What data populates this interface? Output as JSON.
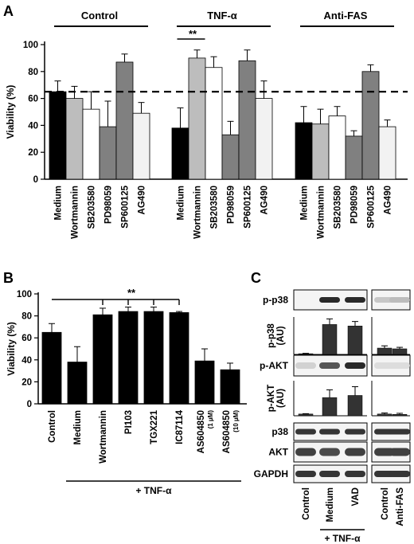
{
  "panel_labels": {
    "a": "A",
    "b": "B",
    "c": "C"
  },
  "chart_data": [
    {
      "type": "bar",
      "panel": "A",
      "ylabel": "Viability (%)",
      "ylim": [
        0,
        100
      ],
      "yticks": [
        0,
        20,
        40,
        60,
        80,
        100
      ],
      "reference_line": 65,
      "groups": [
        {
          "name": "Control",
          "categories": [
            "Medium",
            "Wortmannin",
            "SB203580",
            "PD98059",
            "SP600125",
            "AG490"
          ],
          "values": [
            65,
            60,
            52,
            39,
            87,
            49
          ],
          "errors": [
            8,
            9,
            13,
            19,
            6,
            8
          ],
          "colors": [
            "#000000",
            "#bdbdbd",
            "#ffffff",
            "#808080",
            "#808080",
            "#f2f2f2"
          ]
        },
        {
          "name": "TNF-α",
          "categories": [
            "Medium",
            "Wortmannin",
            "SB203580",
            "PD98059",
            "SP600125",
            "AG490"
          ],
          "values": [
            38,
            90,
            83,
            33,
            88,
            60
          ],
          "errors": [
            15,
            6,
            8,
            10,
            8,
            13
          ],
          "colors": [
            "#000000",
            "#bdbdbd",
            "#ffffff",
            "#808080",
            "#808080",
            "#f2f2f2"
          ],
          "significance": {
            "label": "**",
            "between": [
              0,
              1
            ]
          }
        },
        {
          "name": "Anti-FAS",
          "categories": [
            "Medium",
            "Wortmannin",
            "SB203580",
            "PD98059",
            "SP600125",
            "AG490"
          ],
          "values": [
            42,
            41,
            47,
            32,
            80,
            39
          ],
          "errors": [
            12,
            11,
            7,
            4,
            5,
            5
          ],
          "colors": [
            "#000000",
            "#bdbdbd",
            "#ffffff",
            "#808080",
            "#808080",
            "#f2f2f2"
          ]
        }
      ]
    },
    {
      "type": "bar",
      "panel": "B",
      "ylabel": "Viability (%)",
      "ylim": [
        0,
        100
      ],
      "yticks": [
        0,
        20,
        40,
        60,
        80,
        100
      ],
      "categories": [
        "Control",
        "Medium",
        "Wortmannin",
        "PI103",
        "TGX221",
        "IC87114",
        "AS604850",
        "AS604850"
      ],
      "sublabels": [
        "",
        "",
        "",
        "",
        "",
        "",
        "(1 µM)",
        "(10 µM)"
      ],
      "values": [
        65,
        38,
        81,
        84,
        84,
        83,
        39,
        31
      ],
      "errors": [
        8,
        14,
        6,
        4,
        4,
        1,
        11,
        6
      ],
      "significance": {
        "label": "**",
        "from": 0,
        "to": [
          2,
          3,
          4,
          5
        ]
      },
      "footer": "+ TNF-α",
      "footer_span": [
        1,
        7
      ]
    },
    {
      "type": "bar",
      "panel": "C",
      "blot_rows": [
        "p-p38",
        "p-AKT",
        "p38",
        "AKT",
        "GAPDH"
      ],
      "densitometry": [
        {
          "ylabel": "p-p38\n(AU)",
          "categories": [
            "Control",
            "Medium",
            "VAD",
            "Control",
            "Anti-FAS"
          ],
          "values": [
            0.02,
            0.8,
            0.76,
            0.17,
            0.15
          ],
          "errors": [
            0.01,
            0.15,
            0.12,
            0.06,
            0.04
          ]
        },
        {
          "ylabel": "p-AKT\n(AU)",
          "categories": [
            "Control",
            "Medium",
            "VAD",
            "Control",
            "Anti-FAS"
          ],
          "values": [
            0.05,
            0.52,
            0.58,
            0.05,
            0.04
          ],
          "errors": [
            0.01,
            0.22,
            0.25,
            0.03,
            0.03
          ]
        }
      ],
      "lane_labels": [
        "Control",
        "Medium",
        "VAD",
        "Control",
        "Anti-FAS"
      ],
      "footer": "+ TNF-α",
      "footer_span": [
        1,
        2
      ]
    }
  ]
}
